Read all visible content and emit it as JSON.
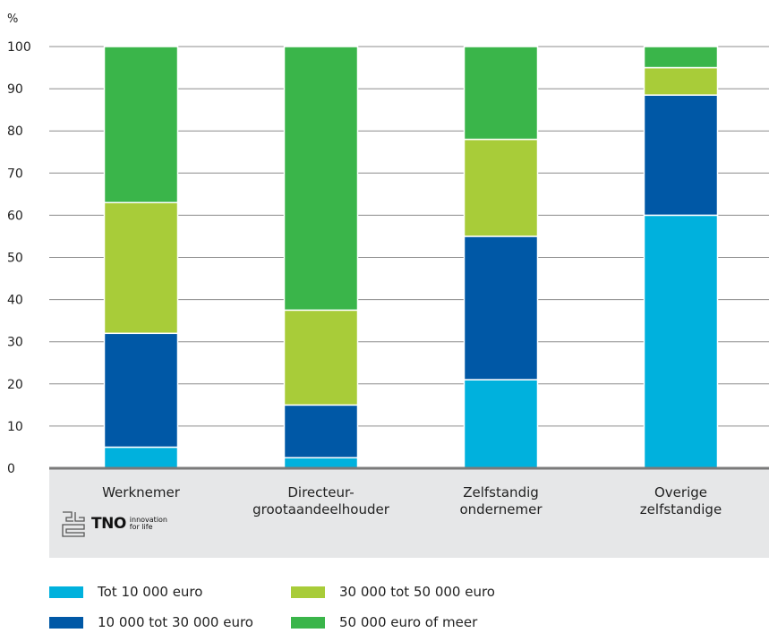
{
  "chart_data": {
    "type": "bar",
    "stacked": true,
    "unit_label": "%",
    "ylim": [
      0,
      100
    ],
    "yticks": [
      0,
      10,
      20,
      30,
      40,
      50,
      60,
      70,
      80,
      90,
      100
    ],
    "grid": true,
    "categories": [
      [
        "Werknemer"
      ],
      [
        "Directeur-",
        "grootaandeelhouder"
      ],
      [
        "Zelfstandig",
        "ondernemer"
      ],
      [
        "Overige",
        "zelfstandige"
      ]
    ],
    "series": [
      {
        "name": "Tot 10 000 euro",
        "color": "#00b1dd",
        "values": [
          5,
          2.5,
          21,
          60
        ]
      },
      {
        "name": "10 000 tot 30 000 euro",
        "color": "#0058a6",
        "values": [
          27,
          12.5,
          34,
          28.5
        ]
      },
      {
        "name": "30 000 tot 50 000 euro",
        "color": "#a8cc39",
        "values": [
          31,
          22.5,
          23,
          6.5
        ]
      },
      {
        "name": "50 000 euro of meer",
        "color": "#3ab54a",
        "values": [
          37,
          62.5,
          22,
          5
        ]
      }
    ],
    "legend_placement": "bottom"
  },
  "logos": {
    "tno_word": "TNO",
    "tno_tagline_1": "innovation",
    "tno_tagline_2": "for life"
  }
}
